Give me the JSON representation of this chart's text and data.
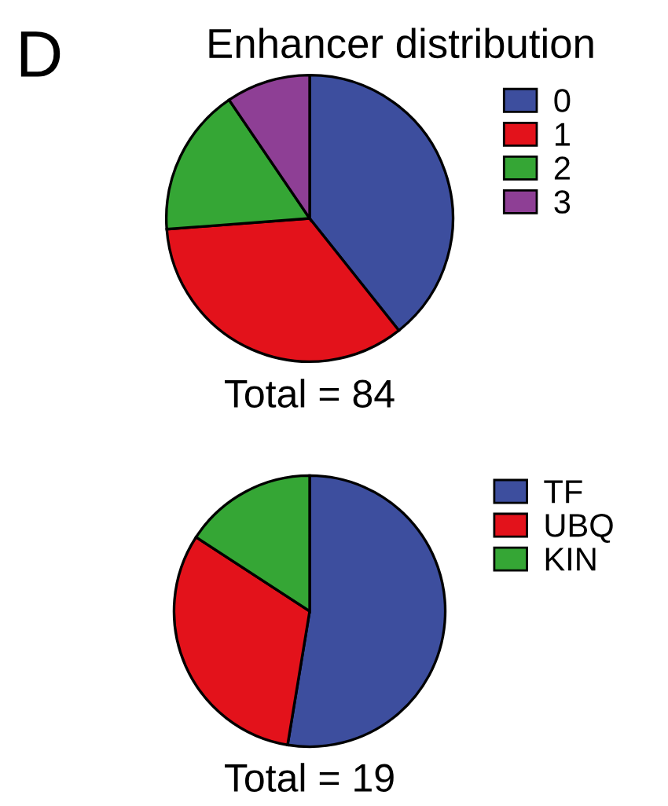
{
  "chart_data": [
    {
      "type": "pie",
      "title": "Enhancer distribution",
      "annotations": [
        "D",
        "Total = 84"
      ],
      "categories": [
        "0",
        "1",
        "2",
        "3"
      ],
      "values": [
        39.3,
        34.5,
        16.7,
        9.5
      ],
      "colors": [
        "#3d4e9e",
        "#e3121b",
        "#35a635",
        "#8e3f95"
      ],
      "legend": "right"
    },
    {
      "type": "pie",
      "annotations": [
        "Total = 19"
      ],
      "categories": [
        "TF",
        "UBQ",
        "KIN"
      ],
      "values": [
        52.6,
        31.6,
        15.8
      ],
      "colors": [
        "#3d4e9e",
        "#e3121b",
        "#35a635"
      ],
      "legend": "right"
    }
  ]
}
